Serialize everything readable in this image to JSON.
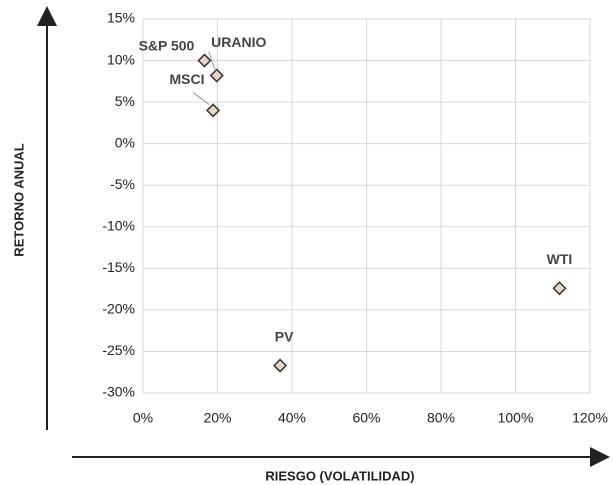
{
  "chart_data": {
    "type": "scatter",
    "xlabel": "RIESGO (VOLATILIDAD)",
    "ylabel": "RETORNO ANUAL",
    "series": [
      {
        "color": "#e8d6c2",
        "x": [
          16.5,
          19.8,
          18.8,
          36.8,
          111.8
        ],
        "values": [
          10,
          8.2,
          4,
          -26.7,
          -17.4
        ],
        "point_labels": [
          "S&P 500",
          "URANIO",
          "MSCI",
          "PV",
          "WTI"
        ]
      }
    ],
    "xlim": [
      0,
      120
    ],
    "ylim": [
      -30,
      15
    ],
    "xticks": [
      {
        "value": 0,
        "label": "0%"
      },
      {
        "value": 20,
        "label": "20%"
      },
      {
        "value": 40,
        "label": "40%"
      },
      {
        "value": 60,
        "label": "60%"
      },
      {
        "value": 80,
        "label": "80%"
      },
      {
        "value": 100,
        "label": "100%"
      },
      {
        "value": 120,
        "label": "120%"
      }
    ],
    "yticks": [
      {
        "value": -30,
        "label": "-30%"
      },
      {
        "value": -25,
        "label": "-25%"
      },
      {
        "value": -20,
        "label": "-20%"
      },
      {
        "value": -15,
        "label": "-15%"
      },
      {
        "value": -10,
        "label": "-10%"
      },
      {
        "value": -5,
        "label": "-5%"
      },
      {
        "value": 0,
        "label": "0%"
      },
      {
        "value": 5,
        "label": "5%"
      },
      {
        "value": 10,
        "label": "10%"
      },
      {
        "value": 15,
        "label": "15%"
      }
    ],
    "grid": true
  }
}
